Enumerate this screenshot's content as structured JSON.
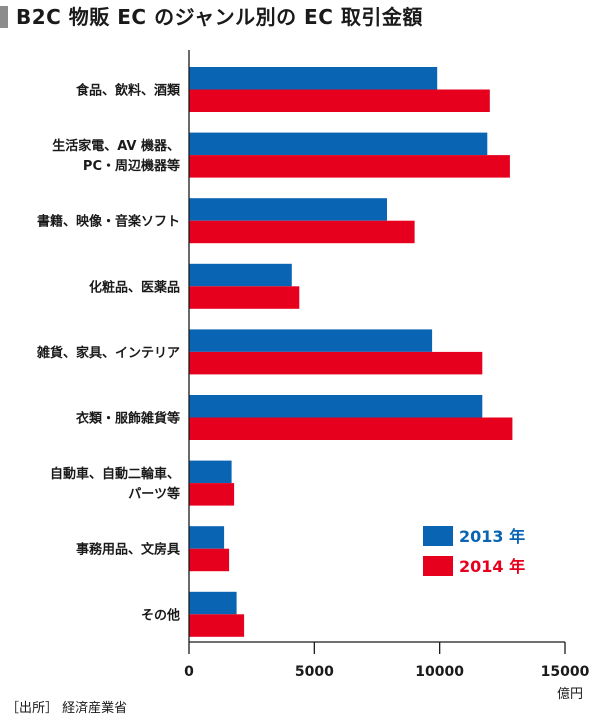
{
  "title": "B2C 物販 EC のジャンル別の EC 取引金額",
  "source": "［出所］ 経済産業省",
  "colors": {
    "2013": "#0a64b4",
    "2014": "#e6001e"
  },
  "chart_data": {
    "type": "bar",
    "orientation": "horizontal",
    "title": "B2C 物販 EC のジャンル別の EC 取引金額",
    "categories": [
      [
        "食品、飲料、酒類"
      ],
      [
        "生活家電、AV 機器、",
        "PC・周辺機器等"
      ],
      [
        "書籍、映像・音楽ソフト"
      ],
      [
        "化粧品、医薬品"
      ],
      [
        "雑貨、家具、インテリア"
      ],
      [
        "衣類・服飾雑貨等"
      ],
      [
        "自動車、自動二輪車、",
        "パーツ等"
      ],
      [
        "事務用品、文房具"
      ],
      [
        "その他"
      ]
    ],
    "series": [
      {
        "name": "2013 年",
        "color": "#0a64b4",
        "values": [
          9900,
          11900,
          7900,
          4100,
          9700,
          11700,
          1700,
          1400,
          1900
        ]
      },
      {
        "name": "2014 年",
        "color": "#e6001e",
        "values": [
          12000,
          12800,
          9000,
          4400,
          11700,
          12900,
          1800,
          1600,
          2200
        ]
      }
    ],
    "xlim": [
      0,
      15000
    ],
    "xticks": [
      "0",
      "5000",
      "10000",
      "15000"
    ],
    "xunit": "億円",
    "grid": false,
    "legend": "bottom-right"
  }
}
